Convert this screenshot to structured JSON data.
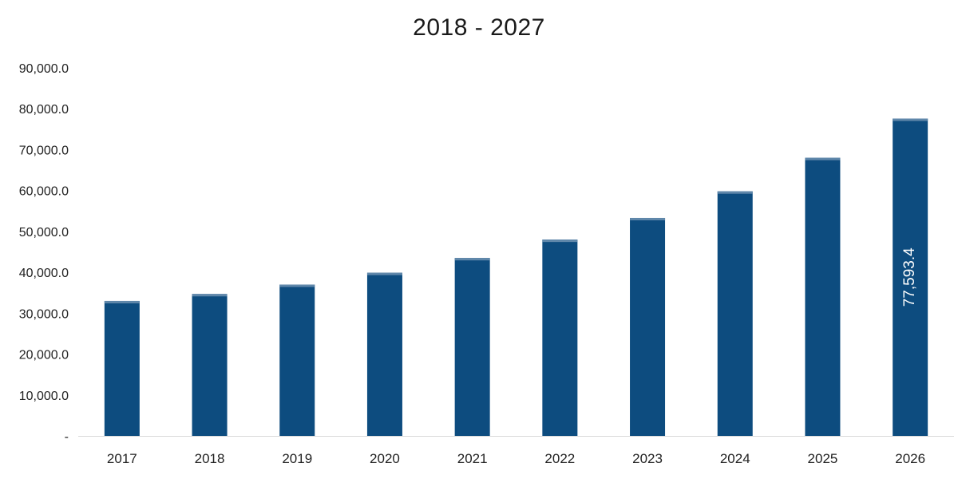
{
  "chart_data": {
    "type": "bar",
    "title": "2018 - 2027",
    "xlabel": "",
    "ylabel": "",
    "categories": [
      "2017",
      "2018",
      "2019",
      "2020",
      "2021",
      "2022",
      "2023",
      "2024",
      "2025",
      "2026"
    ],
    "values": [
      33000,
      34700,
      37000,
      39900,
      43500,
      48000,
      53300,
      59800,
      68000,
      77593.4
    ],
    "ylim": [
      0,
      90000
    ],
    "yticks": [
      0,
      10000,
      20000,
      30000,
      40000,
      50000,
      60000,
      70000,
      80000,
      90000
    ],
    "ytick_labels": [
      "-",
      "10,000.0",
      "20,000.0",
      "30,000.0",
      "40,000.0",
      "50,000.0",
      "60,000.0",
      "70,000.0",
      "80,000.0",
      "90,000.0"
    ],
    "data_labels": [
      {
        "category": "2026",
        "text": "77,593.4"
      }
    ],
    "bar_color": "#0d4c7f",
    "grid": false,
    "legend": "none"
  }
}
